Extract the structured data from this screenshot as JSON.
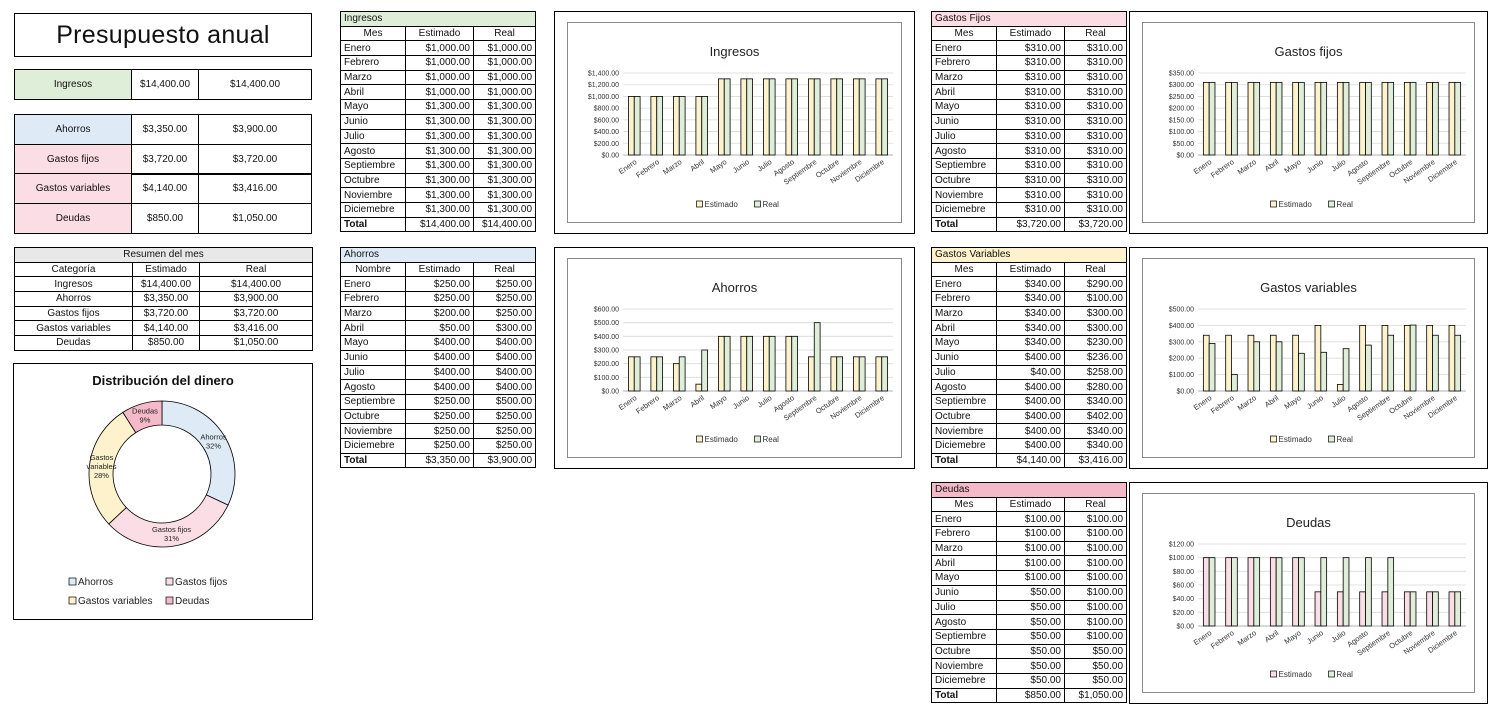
{
  "colors": {
    "green": "#dfeed8",
    "blue": "#deeaf6",
    "pink": "#fbdde5",
    "rose": "#f5b9c9",
    "yellow": "#fdf2cb",
    "grey": "#e8e8e8"
  },
  "title": "Presupuesto anual",
  "summary_top": [
    {
      "label": "Ingresos",
      "est": "$14,400.00",
      "real": "$14,400.00",
      "color": "#dfeed8"
    }
  ],
  "summary_rows": [
    {
      "label": "Ahorros",
      "est": "$3,350.00",
      "real": "$3,900.00",
      "color": "#deeaf6"
    },
    {
      "label": "Gastos fijos",
      "est": "$3,720.00",
      "real": "$3,720.00",
      "color": "#fbdde5"
    },
    {
      "label": "Gastos variables",
      "est": "$4,140.00",
      "real": "$3,416.00",
      "color": "#fbdde5"
    },
    {
      "label": "Deudas",
      "est": "$850.00",
      "real": "$1,050.00",
      "color": "#fbdde5"
    }
  ],
  "resumen": {
    "caption": "Resumen del mes",
    "headers": [
      "Categoría",
      "Estimado",
      "Real"
    ],
    "rows": [
      [
        "Ingresos",
        "$14,400.00",
        "$14,400.00"
      ],
      [
        "Ahorros",
        "$3,350.00",
        "$3,900.00"
      ],
      [
        "Gastos fijos",
        "$3,720.00",
        "$3,720.00"
      ],
      [
        "Gastos variables",
        "$4,140.00",
        "$3,416.00"
      ],
      [
        "Deudas",
        "$850.00",
        "$1,050.00"
      ]
    ]
  },
  "donut": {
    "title": "Distribución del dinero",
    "slices": [
      {
        "name": "Ahorros",
        "pct": 32,
        "label": "Ahorros\n32%",
        "color": "#deeaf6"
      },
      {
        "name": "Gastos fijos",
        "pct": 31,
        "label": "Gastos fijos\n31%",
        "color": "#fbdde5"
      },
      {
        "name": "Gastos variables",
        "pct": 28,
        "label": "Gastos\nvariables\n28%",
        "color": "#fdf2cb"
      },
      {
        "name": "Deudas",
        "pct": 9,
        "label": "Deudas\n9%",
        "color": "#f5b9c9"
      }
    ],
    "legend": [
      "Ahorros",
      "Gastos fijos",
      "Gastos variables",
      "Deudas"
    ]
  },
  "tables": [
    {
      "id": "ingresos",
      "caption": "Ingresos",
      "color": "#dfeed8",
      "headers": [
        "Mes",
        "Estimado",
        "Real"
      ],
      "rows": [
        [
          "Enero",
          "$1,000.00",
          "$1,000.00"
        ],
        [
          "Febrero",
          "$1,000.00",
          "$1,000.00"
        ],
        [
          "Marzo",
          "$1,000.00",
          "$1,000.00"
        ],
        [
          "Abril",
          "$1,000.00",
          "$1,000.00"
        ],
        [
          "Mayo",
          "$1,300.00",
          "$1,300.00"
        ],
        [
          "Junio",
          "$1,300.00",
          "$1,300.00"
        ],
        [
          "Julio",
          "$1,300.00",
          "$1,300.00"
        ],
        [
          "Agosto",
          "$1,300.00",
          "$1,300.00"
        ],
        [
          "Septiembre",
          "$1,300.00",
          "$1,300.00"
        ],
        [
          "Octubre",
          "$1,300.00",
          "$1,300.00"
        ],
        [
          "Noviembre",
          "$1,300.00",
          "$1,300.00"
        ],
        [
          "Diciemebre",
          "$1,300.00",
          "$1,300.00"
        ]
      ],
      "total": [
        "Total",
        "$14,400.00",
        "$14,400.00"
      ]
    },
    {
      "id": "ahorros",
      "caption": "Ahorros",
      "color": "#deeaf6",
      "headers": [
        "Nombre",
        "Estimado",
        "Real"
      ],
      "rows": [
        [
          "Enero",
          "$250.00",
          "$250.00"
        ],
        [
          "Febrero",
          "$250.00",
          "$250.00"
        ],
        [
          "Marzo",
          "$200.00",
          "$250.00"
        ],
        [
          "Abril",
          "$50.00",
          "$300.00"
        ],
        [
          "Mayo",
          "$400.00",
          "$400.00"
        ],
        [
          "Junio",
          "$400.00",
          "$400.00"
        ],
        [
          "Julio",
          "$400.00",
          "$400.00"
        ],
        [
          "Agosto",
          "$400.00",
          "$400.00"
        ],
        [
          "Septiembre",
          "$250.00",
          "$500.00"
        ],
        [
          "Octubre",
          "$250.00",
          "$250.00"
        ],
        [
          "Noviembre",
          "$250.00",
          "$250.00"
        ],
        [
          "Diciemebre",
          "$250.00",
          "$250.00"
        ]
      ],
      "total": [
        "Total",
        "$3,350.00",
        "$3,900.00"
      ]
    },
    {
      "id": "fijos",
      "caption": "Gastos Fijos",
      "color": "#fbdde5",
      "headers": [
        "Mes",
        "Estimado",
        "Real"
      ],
      "rows": [
        [
          "Enero",
          "$310.00",
          "$310.00"
        ],
        [
          "Febrero",
          "$310.00",
          "$310.00"
        ],
        [
          "Marzo",
          "$310.00",
          "$310.00"
        ],
        [
          "Abril",
          "$310.00",
          "$310.00"
        ],
        [
          "Mayo",
          "$310.00",
          "$310.00"
        ],
        [
          "Junio",
          "$310.00",
          "$310.00"
        ],
        [
          "Julio",
          "$310.00",
          "$310.00"
        ],
        [
          "Agosto",
          "$310.00",
          "$310.00"
        ],
        [
          "Septiembre",
          "$310.00",
          "$310.00"
        ],
        [
          "Octubre",
          "$310.00",
          "$310.00"
        ],
        [
          "Noviembre",
          "$310.00",
          "$310.00"
        ],
        [
          "Diciemebre",
          "$310.00",
          "$310.00"
        ]
      ],
      "total": [
        "Total",
        "$3,720.00",
        "$3,720.00"
      ]
    },
    {
      "id": "variables",
      "caption": "Gastos Variables",
      "color": "#fdf2cb",
      "headers": [
        "Mes",
        "Estimado",
        "Real"
      ],
      "rows": [
        [
          "Enero",
          "$340.00",
          "$290.00"
        ],
        [
          "Febrero",
          "$340.00",
          "$100.00"
        ],
        [
          "Marzo",
          "$340.00",
          "$300.00"
        ],
        [
          "Abril",
          "$340.00",
          "$300.00"
        ],
        [
          "Mayo",
          "$340.00",
          "$230.00"
        ],
        [
          "Junio",
          "$400.00",
          "$236.00"
        ],
        [
          "Julio",
          "$40.00",
          "$258.00"
        ],
        [
          "Agosto",
          "$400.00",
          "$280.00"
        ],
        [
          "Septiembre",
          "$400.00",
          "$340.00"
        ],
        [
          "Octubre",
          "$400.00",
          "$402.00"
        ],
        [
          "Noviembre",
          "$400.00",
          "$340.00"
        ],
        [
          "Diciemebre",
          "$400.00",
          "$340.00"
        ]
      ],
      "total": [
        "Total",
        "$4,140.00",
        "$3,416.00"
      ]
    },
    {
      "id": "deudas",
      "caption": "Deudas",
      "color": "#f5b9c9",
      "headers": [
        "Mes",
        "Estimado",
        "Real"
      ],
      "rows": [
        [
          "Enero",
          "$100.00",
          "$100.00"
        ],
        [
          "Febrero",
          "$100.00",
          "$100.00"
        ],
        [
          "Marzo",
          "$100.00",
          "$100.00"
        ],
        [
          "Abril",
          "$100.00",
          "$100.00"
        ],
        [
          "Mayo",
          "$100.00",
          "$100.00"
        ],
        [
          "Junio",
          "$50.00",
          "$100.00"
        ],
        [
          "Julio",
          "$50.00",
          "$100.00"
        ],
        [
          "Agosto",
          "$50.00",
          "$100.00"
        ],
        [
          "Septiembre",
          "$50.00",
          "$100.00"
        ],
        [
          "Octubre",
          "$50.00",
          "$50.00"
        ],
        [
          "Noviembre",
          "$50.00",
          "$50.00"
        ],
        [
          "Diciemebre",
          "$50.00",
          "$50.00"
        ]
      ],
      "total": [
        "Total",
        "$850.00",
        "$1,050.00"
      ]
    }
  ],
  "chart_data": [
    {
      "id": "ingresos",
      "type": "bar",
      "title": "Ingresos",
      "categories": [
        "Enero",
        "Febrero",
        "Marzo",
        "Abril",
        "Mayo",
        "Junio",
        "Julio",
        "Agosto",
        "Septiembre",
        "Octubre",
        "Noviembre",
        "Diciembre"
      ],
      "series": [
        {
          "name": "Estimado",
          "values": [
            1000,
            1000,
            1000,
            1000,
            1300,
            1300,
            1300,
            1300,
            1300,
            1300,
            1300,
            1300
          ],
          "color": "#fdf2cb"
        },
        {
          "name": "Real",
          "values": [
            1000,
            1000,
            1000,
            1000,
            1300,
            1300,
            1300,
            1300,
            1300,
            1300,
            1300,
            1300
          ],
          "color": "#dfeed8"
        }
      ],
      "yticks": [
        "$0.00",
        "$200.00",
        "$400.00",
        "$600.00",
        "$800.00",
        "$1,000.00",
        "$1,200.00",
        "$1,400.00"
      ],
      "ylim": [
        0,
        1400
      ],
      "grid": true,
      "legend": "bottom"
    },
    {
      "id": "ahorros",
      "type": "bar",
      "title": "Ahorros",
      "categories": [
        "Enero",
        "Febrero",
        "Marzo",
        "Abril",
        "Mayo",
        "Junio",
        "Julio",
        "Agosto",
        "Septiembre",
        "Octubre",
        "Noviembre",
        "Diciembre"
      ],
      "series": [
        {
          "name": "Estimado",
          "values": [
            250,
            250,
            200,
            50,
            400,
            400,
            400,
            400,
            250,
            250,
            250,
            250
          ],
          "color": "#fdf2cb"
        },
        {
          "name": "Real",
          "values": [
            250,
            250,
            250,
            300,
            400,
            400,
            400,
            400,
            500,
            250,
            250,
            250
          ],
          "color": "#dfeed8"
        }
      ],
      "yticks": [
        "$0.00",
        "$100.00",
        "$200.00",
        "$300.00",
        "$400.00",
        "$500.00",
        "$600.00"
      ],
      "ylim": [
        0,
        600
      ],
      "grid": true,
      "legend": "bottom"
    },
    {
      "id": "fijos",
      "type": "bar",
      "title": "Gastos fijos",
      "categories": [
        "Enero",
        "Febrero",
        "Marzo",
        "Abril",
        "Mayo",
        "Junio",
        "Julio",
        "Agosto",
        "Septiembre",
        "Octubre",
        "Noviembre",
        "Diciembre"
      ],
      "series": [
        {
          "name": "Estimado",
          "values": [
            310,
            310,
            310,
            310,
            310,
            310,
            310,
            310,
            310,
            310,
            310,
            310
          ],
          "color": "#fdf2cb"
        },
        {
          "name": "Real",
          "values": [
            310,
            310,
            310,
            310,
            310,
            310,
            310,
            310,
            310,
            310,
            310,
            310
          ],
          "color": "#dfeed8"
        }
      ],
      "yticks": [
        "$0.00",
        "$50.00",
        "$100.00",
        "$150.00",
        "$200.00",
        "$250.00",
        "$300.00",
        "$350.00"
      ],
      "ylim": [
        0,
        350
      ],
      "grid": true,
      "legend": "bottom"
    },
    {
      "id": "variables",
      "type": "bar",
      "title": "Gastos variables",
      "categories": [
        "Enero",
        "Febrero",
        "Marzo",
        "Abril",
        "Mayo",
        "Junio",
        "Julio",
        "Agosto",
        "Septiembre",
        "Octubre",
        "Noviembre",
        "Diciembre"
      ],
      "series": [
        {
          "name": "Estimado",
          "values": [
            340,
            340,
            340,
            340,
            340,
            400,
            40,
            400,
            400,
            400,
            400,
            400
          ],
          "color": "#fdf2cb"
        },
        {
          "name": "Real",
          "values": [
            290,
            100,
            300,
            300,
            230,
            236,
            258,
            280,
            340,
            402,
            340,
            340
          ],
          "color": "#dfeed8"
        }
      ],
      "yticks": [
        "$0.00",
        "$100.00",
        "$200.00",
        "$300.00",
        "$400.00",
        "$500.00"
      ],
      "ylim": [
        0,
        500
      ],
      "grid": true,
      "legend": "bottom"
    },
    {
      "id": "deudas",
      "type": "bar",
      "title": "Deudas",
      "categories": [
        "Enero",
        "Febrero",
        "Marzo",
        "Abril",
        "Mayo",
        "Junio",
        "Julio",
        "Agosto",
        "Septiembre",
        "Octubre",
        "Noviembre",
        "Diciembre"
      ],
      "series": [
        {
          "name": "Estimado",
          "values": [
            100,
            100,
            100,
            100,
            100,
            50,
            50,
            50,
            50,
            50,
            50,
            50
          ],
          "color": "#fbdde5"
        },
        {
          "name": "Real",
          "values": [
            100,
            100,
            100,
            100,
            100,
            100,
            100,
            100,
            100,
            50,
            50,
            50
          ],
          "color": "#dfeed8"
        }
      ],
      "yticks": [
        "$0.00",
        "$20.00",
        "$40.00",
        "$60.00",
        "$80.00",
        "$100.00",
        "$120.00"
      ],
      "ylim": [
        0,
        120
      ],
      "grid": true,
      "legend": "bottom"
    }
  ]
}
